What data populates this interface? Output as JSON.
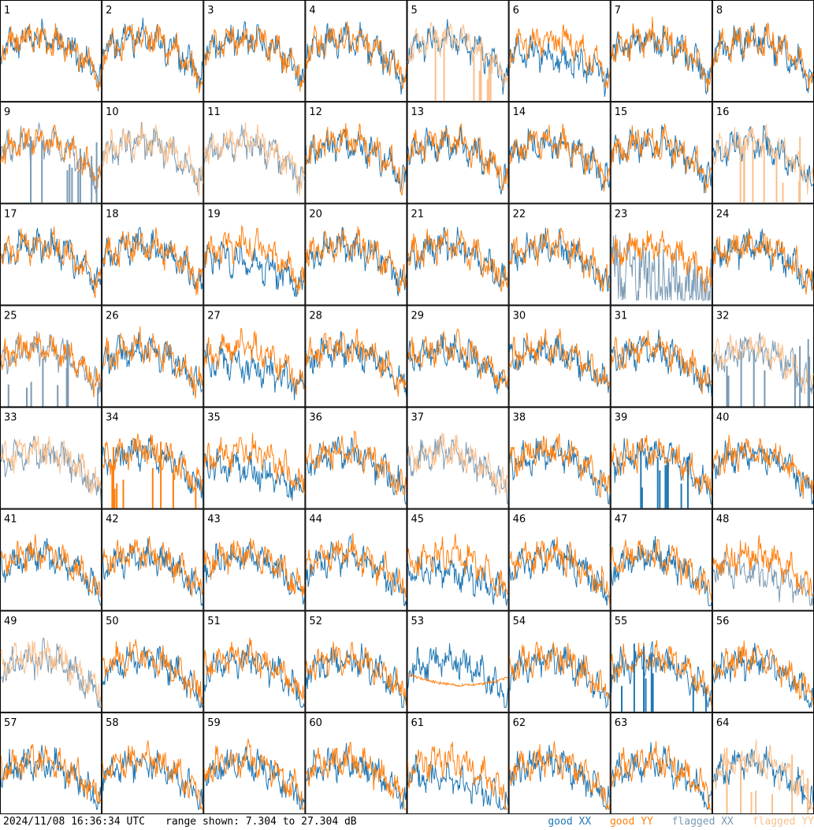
{
  "footer": {
    "timestamp": "2024/11/08 16:36:34 UTC",
    "range_text": "range shown: 7.304 to 27.304 dB",
    "legend": {
      "good_xx": "good XX",
      "good_yy": "good YY",
      "flagged_xx": "flagged XX",
      "flagged_yy": "flagged YY"
    }
  },
  "colors": {
    "good_xx": "#1f77b4",
    "good_yy": "#ff7f0e",
    "flagged_xx": "#7a9ab4",
    "flagged_yy": "#f9c08e"
  },
  "chart_data": {
    "type": "line",
    "layout": "8x8 small multiples",
    "ylim_db": [
      7.304,
      27.304
    ],
    "panels": [
      {
        "id": "1",
        "xx": "good",
        "yy": "good",
        "style": "normal"
      },
      {
        "id": "2",
        "xx": "good",
        "yy": "good",
        "style": "normal"
      },
      {
        "id": "3",
        "xx": "good",
        "yy": "good",
        "style": "normal"
      },
      {
        "id": "4",
        "xx": "good",
        "yy": "good",
        "style": "normal"
      },
      {
        "id": "5",
        "xx": "good",
        "yy": "flagged",
        "style": "yy_spikes"
      },
      {
        "id": "6",
        "xx": "good",
        "yy": "good",
        "style": "xx_low"
      },
      {
        "id": "7",
        "xx": "good",
        "yy": "good",
        "style": "normal"
      },
      {
        "id": "8",
        "xx": "good",
        "yy": "good",
        "style": "normal"
      },
      {
        "id": "9",
        "xx": "flagged",
        "yy": "good",
        "style": "xx_spikes"
      },
      {
        "id": "10",
        "xx": "flagged",
        "yy": "flagged",
        "style": "normal"
      },
      {
        "id": "11",
        "xx": "flagged",
        "yy": "flagged",
        "style": "normal"
      },
      {
        "id": "12",
        "xx": "good",
        "yy": "good",
        "style": "normal"
      },
      {
        "id": "13",
        "xx": "good",
        "yy": "good",
        "style": "normal"
      },
      {
        "id": "14",
        "xx": "good",
        "yy": "good",
        "style": "normal"
      },
      {
        "id": "15",
        "xx": "good",
        "yy": "good",
        "style": "normal"
      },
      {
        "id": "16",
        "xx": "good",
        "yy": "flagged",
        "style": "yy_spikes"
      },
      {
        "id": "17",
        "xx": "good",
        "yy": "good",
        "style": "normal"
      },
      {
        "id": "18",
        "xx": "good",
        "yy": "good",
        "style": "normal"
      },
      {
        "id": "19",
        "xx": "good",
        "yy": "good",
        "style": "xx_low"
      },
      {
        "id": "20",
        "xx": "good",
        "yy": "good",
        "style": "normal"
      },
      {
        "id": "21",
        "xx": "good",
        "yy": "good",
        "style": "normal"
      },
      {
        "id": "22",
        "xx": "good",
        "yy": "good",
        "style": "normal"
      },
      {
        "id": "23",
        "xx": "flagged",
        "yy": "good",
        "style": "xx_noisy"
      },
      {
        "id": "24",
        "xx": "good",
        "yy": "good",
        "style": "normal"
      },
      {
        "id": "25",
        "xx": "flagged",
        "yy": "good",
        "style": "xx_spikes"
      },
      {
        "id": "26",
        "xx": "good",
        "yy": "good",
        "style": "normal"
      },
      {
        "id": "27",
        "xx": "good",
        "yy": "good",
        "style": "xx_low"
      },
      {
        "id": "28",
        "xx": "good",
        "yy": "good",
        "style": "normal"
      },
      {
        "id": "29",
        "xx": "good",
        "yy": "good",
        "style": "normal"
      },
      {
        "id": "30",
        "xx": "good",
        "yy": "good",
        "style": "normal"
      },
      {
        "id": "31",
        "xx": "good",
        "yy": "good",
        "style": "normal"
      },
      {
        "id": "32",
        "xx": "flagged",
        "yy": "flagged",
        "style": "xx_spikes"
      },
      {
        "id": "33",
        "xx": "flagged",
        "yy": "flagged",
        "style": "normal"
      },
      {
        "id": "34",
        "xx": "good",
        "yy": "good",
        "style": "yy_spikes"
      },
      {
        "id": "35",
        "xx": "good",
        "yy": "good",
        "style": "xx_low"
      },
      {
        "id": "36",
        "xx": "good",
        "yy": "good",
        "style": "normal"
      },
      {
        "id": "37",
        "xx": "flagged",
        "yy": "flagged",
        "style": "normal"
      },
      {
        "id": "38",
        "xx": "good",
        "yy": "good",
        "style": "normal"
      },
      {
        "id": "39",
        "xx": "good",
        "yy": "good",
        "style": "xx_spikes"
      },
      {
        "id": "40",
        "xx": "good",
        "yy": "good",
        "style": "normal"
      },
      {
        "id": "41",
        "xx": "good",
        "yy": "good",
        "style": "normal"
      },
      {
        "id": "42",
        "xx": "good",
        "yy": "good",
        "style": "normal"
      },
      {
        "id": "43",
        "xx": "good",
        "yy": "good",
        "style": "normal"
      },
      {
        "id": "44",
        "xx": "good",
        "yy": "good",
        "style": "normal"
      },
      {
        "id": "45",
        "xx": "good",
        "yy": "good",
        "style": "xx_low"
      },
      {
        "id": "46",
        "xx": "good",
        "yy": "good",
        "style": "normal"
      },
      {
        "id": "47",
        "xx": "good",
        "yy": "good",
        "style": "normal"
      },
      {
        "id": "48",
        "xx": "flagged",
        "yy": "good",
        "style": "xx_low"
      },
      {
        "id": "49",
        "xx": "flagged",
        "yy": "flagged",
        "style": "normal"
      },
      {
        "id": "50",
        "xx": "good",
        "yy": "good",
        "style": "normal"
      },
      {
        "id": "51",
        "xx": "good",
        "yy": "good",
        "style": "normal"
      },
      {
        "id": "52",
        "xx": "good",
        "yy": "good",
        "style": "normal"
      },
      {
        "id": "53",
        "xx": "good",
        "yy": "good",
        "style": "yy_low"
      },
      {
        "id": "54",
        "xx": "good",
        "yy": "good",
        "style": "normal"
      },
      {
        "id": "55",
        "xx": "good",
        "yy": "good",
        "style": "xx_spikes"
      },
      {
        "id": "56",
        "xx": "good",
        "yy": "good",
        "style": "normal"
      },
      {
        "id": "57",
        "xx": "good",
        "yy": "good",
        "style": "normal"
      },
      {
        "id": "58",
        "xx": "good",
        "yy": "good",
        "style": "normal"
      },
      {
        "id": "59",
        "xx": "good",
        "yy": "good",
        "style": "normal"
      },
      {
        "id": "60",
        "xx": "good",
        "yy": "good",
        "style": "normal"
      },
      {
        "id": "61",
        "xx": "good",
        "yy": "good",
        "style": "xx_low"
      },
      {
        "id": "62",
        "xx": "good",
        "yy": "good",
        "style": "normal"
      },
      {
        "id": "63",
        "xx": "good",
        "yy": "good",
        "style": "normal"
      },
      {
        "id": "64",
        "xx": "good",
        "yy": "flagged",
        "style": "yy_spikes"
      }
    ]
  }
}
